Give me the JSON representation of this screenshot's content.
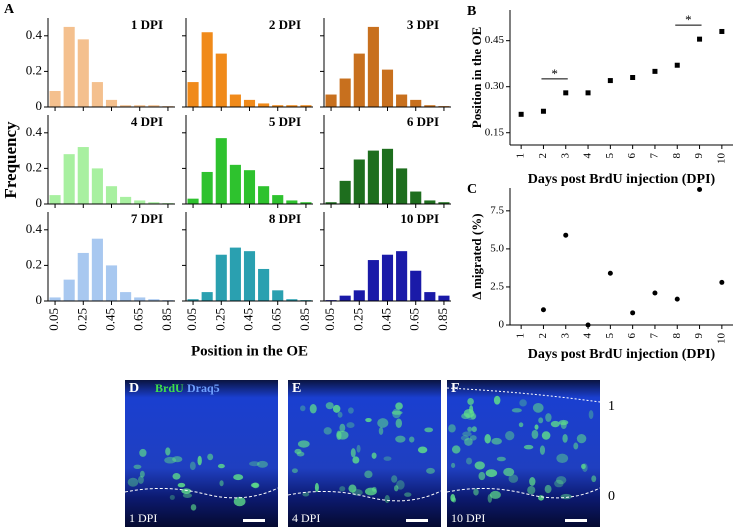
{
  "chart_data": [
    {
      "type": "histogram",
      "panel": "A",
      "ylabel": "Frequency",
      "title": "1 DPI",
      "color": "#f4c08e",
      "bins": [
        0,
        0.1,
        0.2,
        0.3,
        0.4,
        0.5,
        0.6,
        0.7,
        0.8,
        0.9
      ],
      "values": [
        0.09,
        0.45,
        0.38,
        0.14,
        0.04,
        0.01,
        0.01,
        0.01,
        0.005
      ],
      "xlim": [
        0,
        0.9
      ],
      "ylim": [
        0,
        0.5
      ],
      "xticks": [
        0.05,
        0.25,
        0.45,
        0.65,
        0.85
      ],
      "yticks": [
        0,
        0.2,
        0.4
      ]
    },
    {
      "type": "histogram",
      "title": "2 DPI",
      "color": "#f08a1a",
      "bins": [
        0,
        0.1,
        0.2,
        0.3,
        0.4,
        0.5,
        0.6,
        0.7,
        0.8,
        0.9
      ],
      "values": [
        0.14,
        0.42,
        0.3,
        0.07,
        0.04,
        0.02,
        0.01,
        0.01,
        0.01
      ],
      "xlim": [
        0,
        0.9
      ],
      "ylim": [
        0,
        0.5
      ],
      "xticks": [
        0.05,
        0.25,
        0.45,
        0.65,
        0.85
      ],
      "yticks": [
        0,
        0.2,
        0.4
      ]
    },
    {
      "type": "histogram",
      "title": "3 DPI",
      "color": "#c8701e",
      "bins": [
        0,
        0.1,
        0.2,
        0.3,
        0.4,
        0.5,
        0.6,
        0.7,
        0.8,
        0.9
      ],
      "values": [
        0.07,
        0.16,
        0.3,
        0.45,
        0.21,
        0.07,
        0.04,
        0.01,
        0.005
      ],
      "xlim": [
        0,
        0.9
      ],
      "ylim": [
        0,
        0.5
      ],
      "xticks": [
        0.05,
        0.25,
        0.45,
        0.65,
        0.85
      ],
      "yticks": [
        0,
        0.2,
        0.4
      ]
    },
    {
      "type": "histogram",
      "title": "4 DPI",
      "color": "#a8f0a0",
      "bins": [
        0,
        0.1,
        0.2,
        0.3,
        0.4,
        0.5,
        0.6,
        0.7,
        0.8,
        0.9
      ],
      "values": [
        0.05,
        0.28,
        0.32,
        0.2,
        0.1,
        0.04,
        0.02,
        0.01,
        0.005
      ],
      "xlim": [
        0,
        0.9
      ],
      "ylim": [
        0,
        0.5
      ],
      "xticks": [
        0.05,
        0.25,
        0.45,
        0.65,
        0.85
      ],
      "yticks": [
        0,
        0.2,
        0.4
      ]
    },
    {
      "type": "histogram",
      "title": "5 DPI",
      "color": "#2ec22e",
      "bins": [
        0,
        0.1,
        0.2,
        0.3,
        0.4,
        0.5,
        0.6,
        0.7,
        0.8,
        0.9
      ],
      "values": [
        0.03,
        0.18,
        0.37,
        0.22,
        0.19,
        0.1,
        0.05,
        0.02,
        0.01
      ],
      "xlim": [
        0,
        0.9
      ],
      "ylim": [
        0,
        0.5
      ],
      "xticks": [
        0.05,
        0.25,
        0.45,
        0.65,
        0.85
      ],
      "yticks": [
        0,
        0.2,
        0.4
      ]
    },
    {
      "type": "histogram",
      "title": "6 DPI",
      "color": "#1e6e1e",
      "bins": [
        0,
        0.1,
        0.2,
        0.3,
        0.4,
        0.5,
        0.6,
        0.7,
        0.8,
        0.9
      ],
      "values": [
        0.01,
        0.13,
        0.25,
        0.3,
        0.31,
        0.2,
        0.07,
        0.02,
        0.01
      ],
      "xlim": [
        0,
        0.9
      ],
      "ylim": [
        0,
        0.5
      ],
      "xticks": [
        0.05,
        0.25,
        0.45,
        0.65,
        0.85
      ],
      "yticks": [
        0,
        0.2,
        0.4
      ]
    },
    {
      "type": "histogram",
      "title": "7 DPI",
      "color": "#a8c8f0",
      "bins": [
        0,
        0.1,
        0.2,
        0.3,
        0.4,
        0.5,
        0.6,
        0.7,
        0.8,
        0.9
      ],
      "values": [
        0.02,
        0.12,
        0.27,
        0.35,
        0.2,
        0.05,
        0.02,
        0.01,
        0.005
      ],
      "xlim": [
        0,
        0.9
      ],
      "ylim": [
        0,
        0.5
      ],
      "xticks": [
        0.05,
        0.25,
        0.45,
        0.65,
        0.85
      ],
      "yticks": [
        0,
        0.2,
        0.4
      ]
    },
    {
      "type": "histogram",
      "title": "8 DPI",
      "xlabel": "Position in the OE",
      "color": "#2aa0b0",
      "bins": [
        0,
        0.1,
        0.2,
        0.3,
        0.4,
        0.5,
        0.6,
        0.7,
        0.8,
        0.9
      ],
      "values": [
        0.01,
        0.05,
        0.26,
        0.3,
        0.28,
        0.18,
        0.06,
        0.01,
        0.005
      ],
      "xlim": [
        0,
        0.9
      ],
      "ylim": [
        0,
        0.5
      ],
      "xticks": [
        0.05,
        0.25,
        0.45,
        0.65,
        0.85
      ],
      "yticks": [
        0,
        0.2,
        0.4
      ]
    },
    {
      "type": "histogram",
      "title": "10 DPI",
      "color": "#1a1aa8",
      "bins": [
        0,
        0.1,
        0.2,
        0.3,
        0.4,
        0.5,
        0.6,
        0.7,
        0.8,
        0.9
      ],
      "values": [
        0.005,
        0.03,
        0.06,
        0.23,
        0.26,
        0.28,
        0.17,
        0.05,
        0.03
      ],
      "xlim": [
        0,
        0.9
      ],
      "ylim": [
        0,
        0.5
      ],
      "xticks": [
        0.05,
        0.25,
        0.45,
        0.65,
        0.85
      ],
      "yticks": [
        0,
        0.2,
        0.4
      ]
    },
    {
      "type": "errorbar",
      "panel": "B",
      "ylabel": "Position in the OE",
      "xlabel": "Days post BrdU injection (DPI)",
      "color": "#000000",
      "categories": [
        "1",
        "2",
        "3",
        "4",
        "5",
        "6",
        "7",
        "8",
        "9",
        "10"
      ],
      "values": [
        0.21,
        0.22,
        0.28,
        0.28,
        0.32,
        0.33,
        0.35,
        0.37,
        0.455,
        0.48
      ],
      "errors": [
        0.005,
        0.005,
        0.006,
        0.005,
        0.006,
        0.005,
        0.005,
        0.005,
        0.006,
        0.005
      ],
      "annotations": [
        "*",
        "*"
      ],
      "ylim": [
        0.11,
        0.55
      ],
      "yticks": [
        {
          "value": 0.15,
          "label": "0.15"
        },
        {
          "value": 0.3,
          "label": "0.30"
        },
        {
          "value": 0.45,
          "label": "0.45"
        }
      ]
    },
    {
      "type": "scatter",
      "panel": "C",
      "ylabel": "Δ migrated (%)",
      "xlabel": "Days post BrdU injection (DPI)",
      "color": "#000000",
      "categories": [
        "1",
        "2",
        "3",
        "4",
        "5",
        "6",
        "7",
        "8",
        "9",
        "10"
      ],
      "values": [
        null,
        1.0,
        5.9,
        0.0,
        3.4,
        0.8,
        2.1,
        1.7,
        8.9,
        2.8
      ],
      "ylim": [
        0,
        9
      ],
      "yticks": [
        0,
        2.5,
        {
          "value": 5,
          "label": "5.0"
        },
        7.5
      ]
    }
  ],
  "image_panels": [
    {
      "panel": "D",
      "stains": [
        "BrdU",
        "Draq5"
      ],
      "label": "1 DPI"
    },
    {
      "panel": "E",
      "label": "4 DPI"
    },
    {
      "panel": "F",
      "label": "10 DPI"
    }
  ],
  "scale_labels": [
    "1",
    "0"
  ]
}
